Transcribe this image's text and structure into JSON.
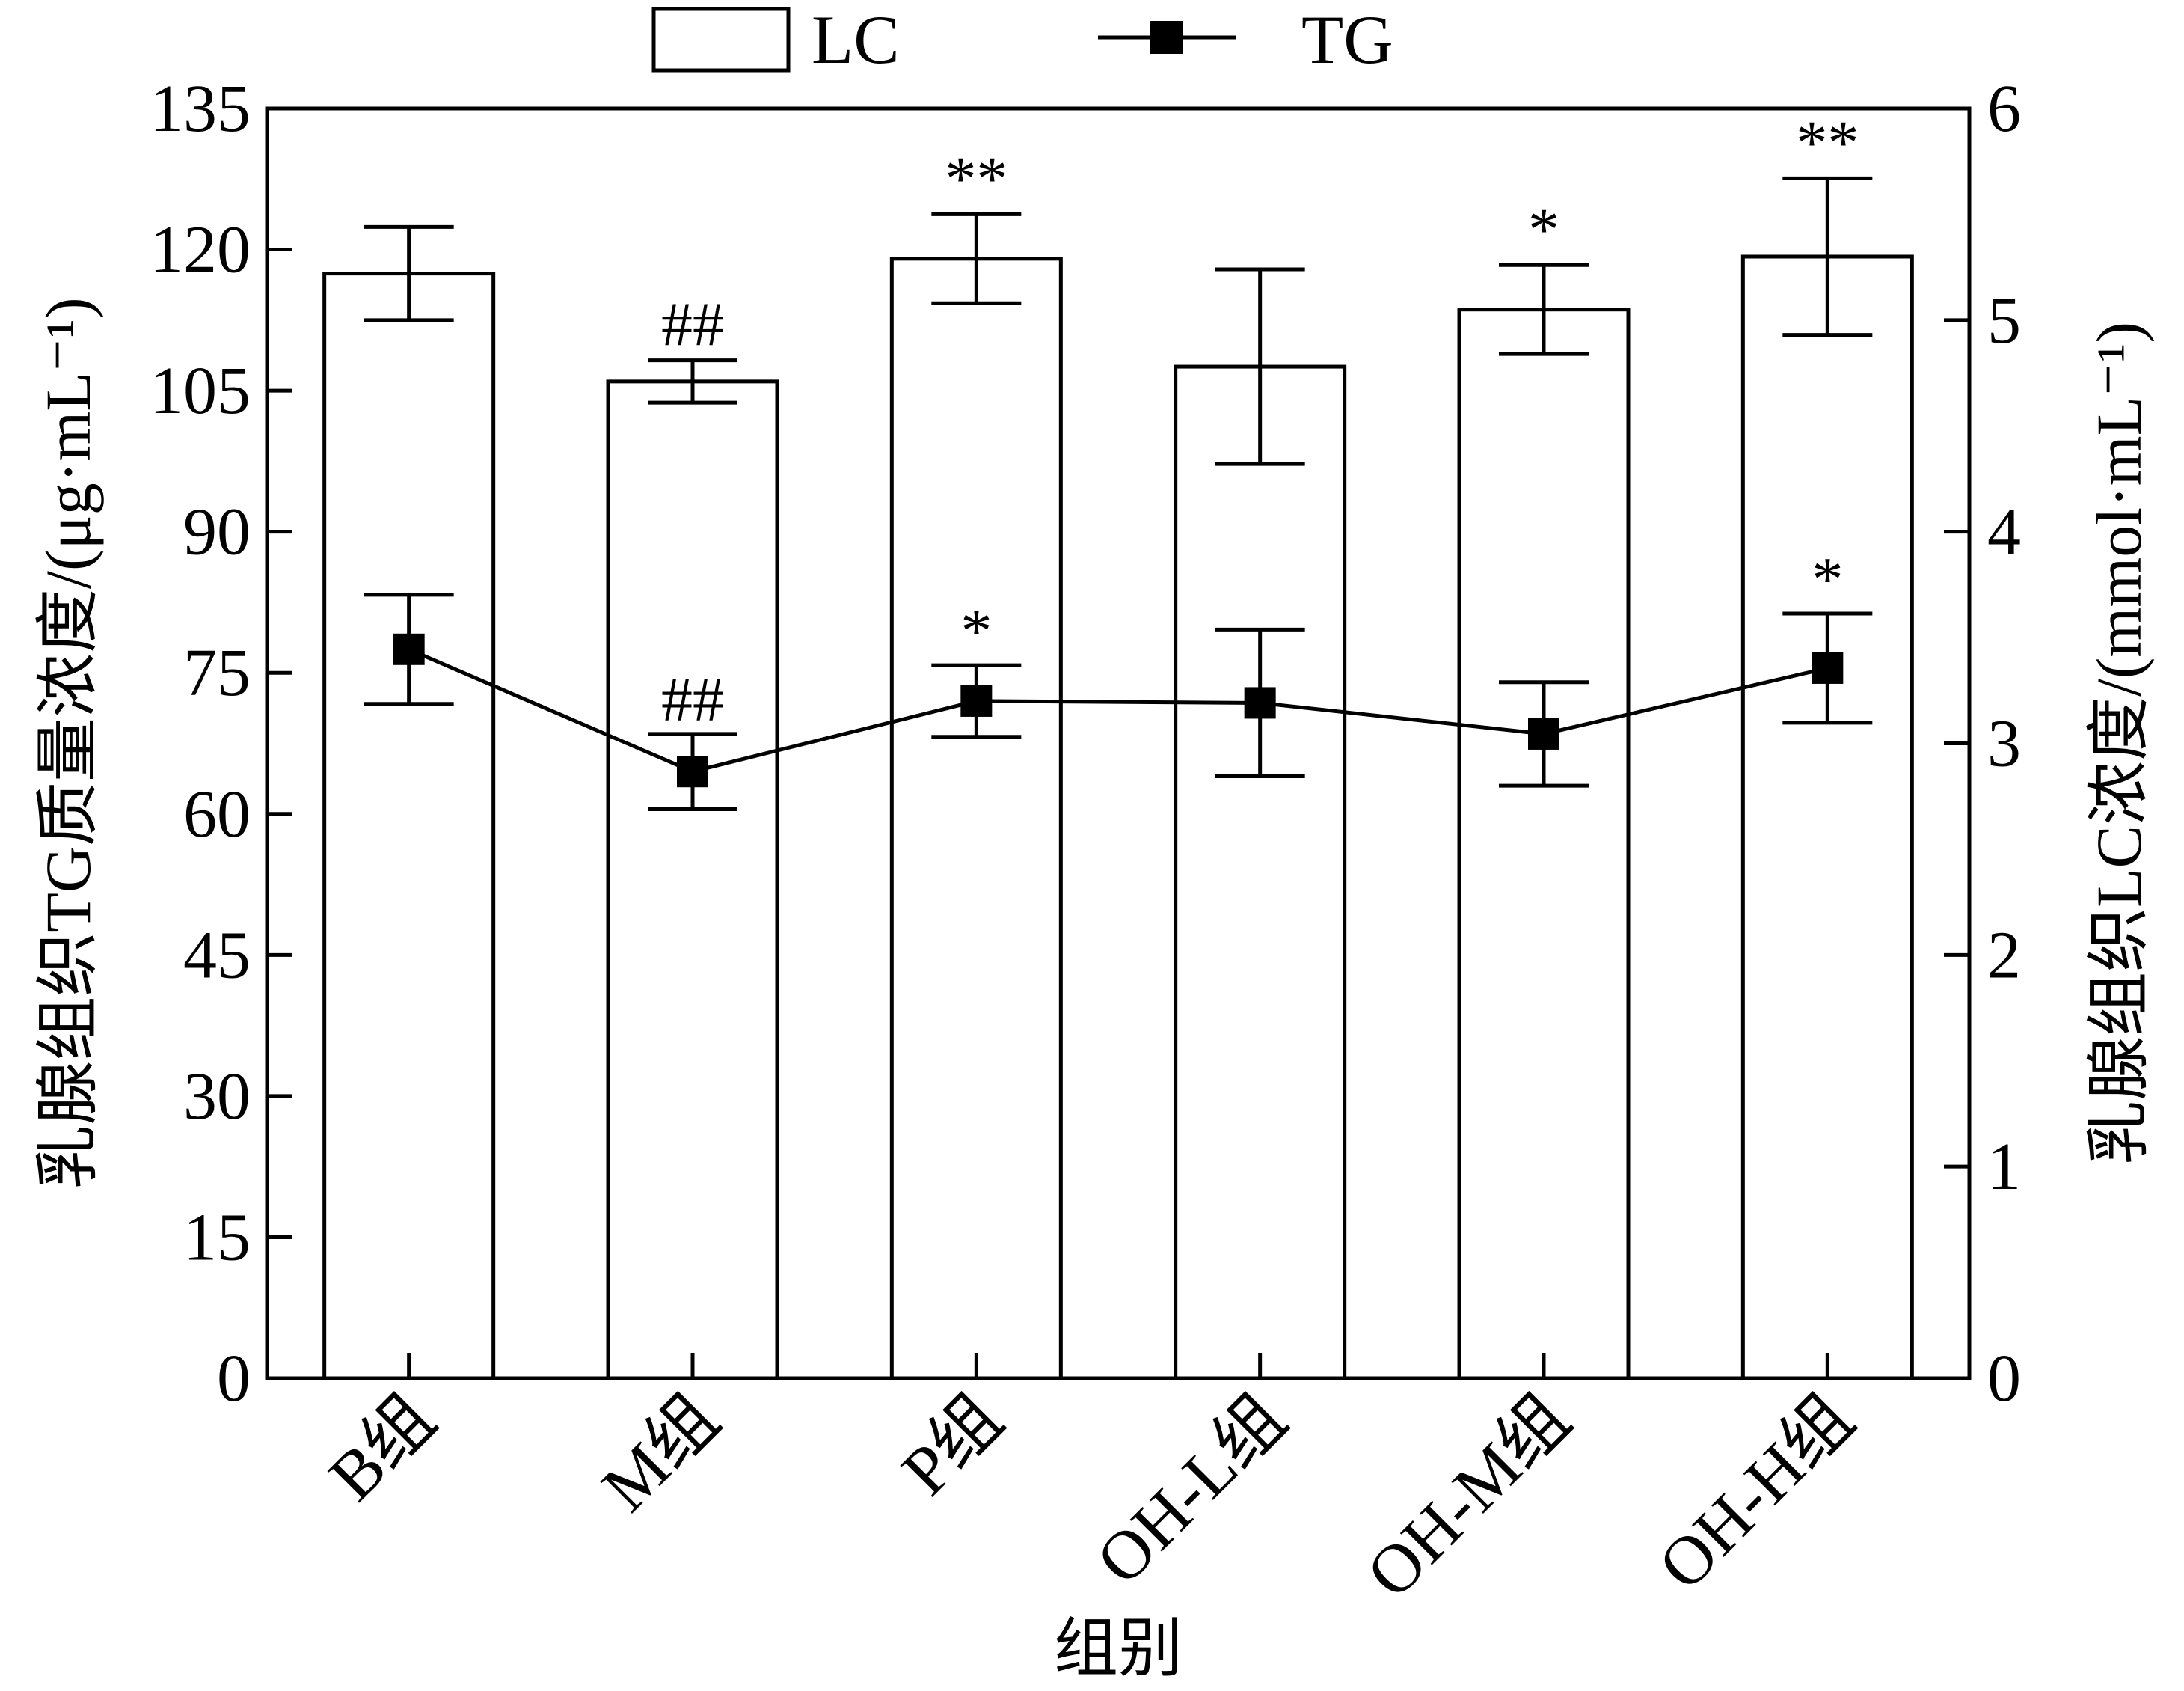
{
  "chart_data": {
    "type": "bar",
    "categories": [
      "B组",
      "M组",
      "P组",
      "OH-L组",
      "OH-M组",
      "OH-H组"
    ],
    "xlabel": "组别",
    "ylabel_left": "乳腺组织TG质量浓度/(μg·mL⁻¹)",
    "ylabel_right": "乳腺组织LC浓度/(mmol·mL⁻¹)",
    "ylim_left": [
      0,
      135
    ],
    "ylim_right": [
      0,
      6
    ],
    "yticks_left": [
      "0",
      "15",
      "30",
      "45",
      "60",
      "75",
      "90",
      "105",
      "120",
      "135"
    ],
    "yticks_right": [
      "0",
      "1",
      "2",
      "3",
      "4",
      "5",
      "6"
    ],
    "legend": {
      "position": "top",
      "entries": [
        "LC",
        "TG"
      ]
    },
    "grid": false,
    "series": [
      {
        "name": "LC",
        "kind": "bar",
        "axis": "right",
        "values": [
          5.22,
          4.71,
          5.29,
          4.78,
          5.05,
          5.3
        ],
        "errors": [
          0.22,
          0.1,
          0.21,
          0.46,
          0.21,
          0.37
        ],
        "markers": [
          "",
          "##",
          "**",
          "",
          "*",
          "**"
        ]
      },
      {
        "name": "TG",
        "kind": "line",
        "axis": "left",
        "values": [
          77.5,
          64.5,
          72.0,
          71.8,
          68.5,
          75.5
        ],
        "errors": [
          5.8,
          4.0,
          3.8,
          7.8,
          5.5,
          5.8
        ],
        "markers": [
          "",
          "##",
          "*",
          "",
          "",
          "*"
        ]
      }
    ]
  }
}
